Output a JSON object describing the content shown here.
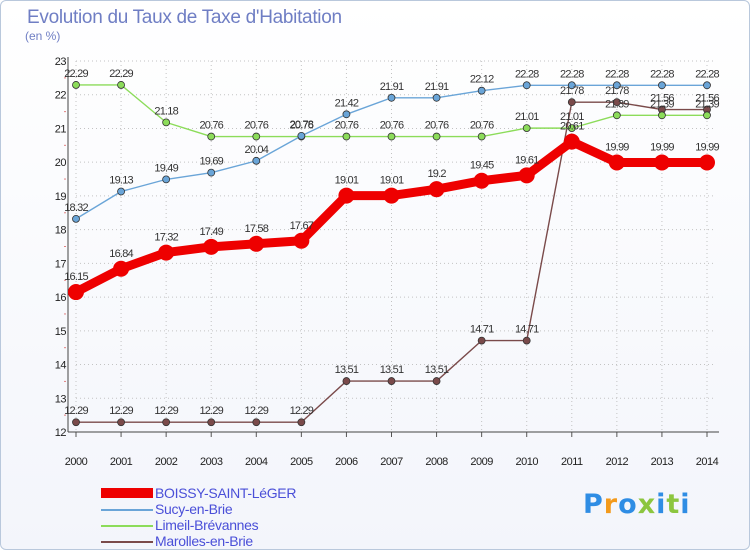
{
  "header": {
    "title": "Evolution du Taux de Taxe d'Habitation",
    "unit": "(en %)"
  },
  "logo": {
    "text": "Proxiti",
    "colors": [
      "#2f8de4",
      "#f39a1b",
      "#2f8de4",
      "#8cc63f",
      "#2f8de4",
      "#8cc63f",
      "#2f8de4"
    ]
  },
  "chart_data": {
    "type": "line",
    "title": "Evolution du Taux de Taxe d'Habitation",
    "ylabel": "(en %)",
    "xlabel": "",
    "ylim": [
      12,
      23
    ],
    "yticks": [
      12,
      13,
      14,
      15,
      16,
      17,
      18,
      19,
      20,
      21,
      22,
      23
    ],
    "grid": true,
    "legend_position": "bottom-left",
    "x": [
      "2000",
      "2001",
      "2002",
      "2003",
      "2004",
      "2005",
      "2006",
      "2007",
      "2008",
      "2009",
      "2010",
      "2011",
      "2012",
      "2013",
      "2014"
    ],
    "series": [
      {
        "name": "BOISSY-SAINT-LéGER",
        "color": "#ee0000",
        "values": [
          16.15,
          16.84,
          17.32,
          17.49,
          17.58,
          17.67,
          19.01,
          19.01,
          19.2,
          19.45,
          19.61,
          20.61,
          19.99,
          19.99,
          19.99
        ],
        "labels": [
          "16.15",
          "16.84",
          "17.32",
          "17.49",
          "17.58",
          "17.67",
          "19.01",
          "19.01",
          "19.2",
          "19.45",
          "19.61",
          "20.61",
          "19.99",
          "19.99",
          "19.99"
        ]
      },
      {
        "name": "Sucy-en-Brie",
        "color": "#6aa5d8",
        "values": [
          18.32,
          19.13,
          19.49,
          19.69,
          20.04,
          20.78,
          21.42,
          21.91,
          21.91,
          22.12,
          22.28,
          22.28,
          22.28,
          22.28,
          22.28
        ],
        "labels": [
          "18.32",
          "19.13",
          "19.49",
          "19.69",
          "20.04",
          "20.78",
          "21.42",
          "21.91",
          "21.91",
          "22.12",
          "22.28",
          "22.28",
          "22.28",
          "22.28",
          "22.28"
        ]
      },
      {
        "name": "Limeil-Brévannes",
        "color": "#8cdc5a",
        "values": [
          22.29,
          22.29,
          21.18,
          20.76,
          20.76,
          20.76,
          20.76,
          20.76,
          20.76,
          20.76,
          21.01,
          21.01,
          21.39,
          21.39,
          21.39
        ],
        "labels": [
          "22.29",
          "22.29",
          "21.18",
          "20.76",
          "20.76",
          "20.76",
          "20.76",
          "20.76",
          "20.76",
          "20.76",
          "21.01",
          "21.01",
          "21.39",
          "21.39",
          "21.39"
        ]
      },
      {
        "name": "Marolles-en-Brie",
        "color": "#7a4a4a",
        "values": [
          12.29,
          12.29,
          12.29,
          12.29,
          12.29,
          12.29,
          13.51,
          13.51,
          13.51,
          14.71,
          14.71,
          21.78,
          21.78,
          21.56,
          21.56
        ],
        "labels": [
          "12.29",
          "12.29",
          "12.29",
          "12.29",
          "12.29",
          "12.29",
          "13.51",
          "13.51",
          "13.51",
          "14.71",
          "14.71",
          "21.78",
          "21.78",
          "21.56",
          "21.56"
        ]
      }
    ]
  }
}
